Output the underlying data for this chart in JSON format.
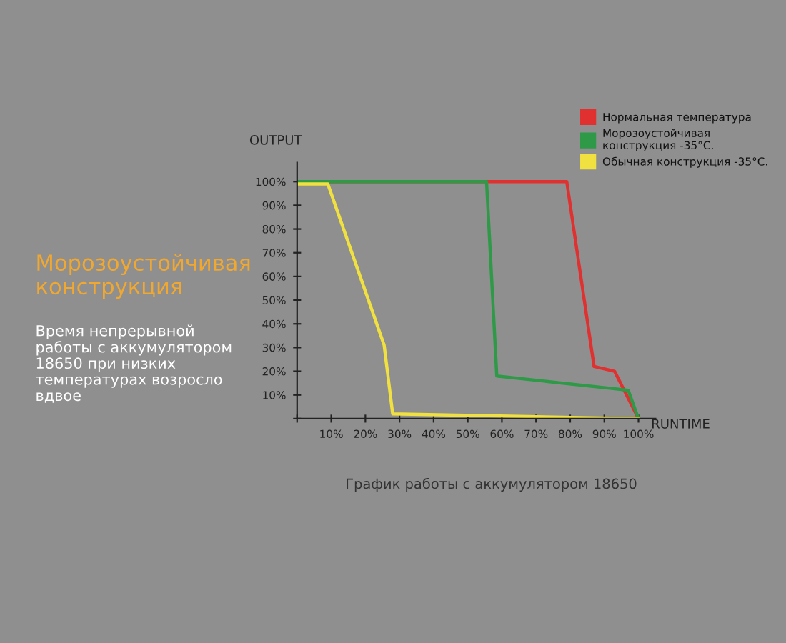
{
  "chart_data": {
    "type": "line",
    "title": "Морозоустойчивая\nконструкция",
    "subtitle": "Время непрерывной\nработы с аккумулятором\n18650 при низких\nтемпературах возросло\nвдвое",
    "xlabel": "RUNTIME",
    "ylabel": "OUTPUT",
    "annotations": [
      "График работы с аккумулятором 18650"
    ],
    "series": [
      {
        "name": "Нормальная температура",
        "color": "#e03030",
        "x": [
          0,
          79,
          87,
          93,
          100
        ],
        "values": [
          100,
          100,
          22,
          20,
          0
        ]
      },
      {
        "name": "Морозоустойчивая\nконструкция -35°C.",
        "color": "#2e9a48",
        "x": [
          0,
          55.5,
          58.5,
          97,
          100
        ],
        "values": [
          100,
          100,
          18,
          12,
          0
        ]
      },
      {
        "name": "Обычная конструкция -35°C.",
        "color": "#f0e040",
        "x": [
          0,
          9,
          25.5,
          28,
          100
        ],
        "values": [
          99,
          99,
          31,
          2,
          0
        ]
      }
    ],
    "xlim": [
      0,
      105
    ],
    "ylim": [
      0,
      108
    ],
    "xticks": [
      {
        "value": 0,
        "label": null
      },
      {
        "value": 10,
        "label": "10%"
      },
      {
        "value": 20,
        "label": "20%"
      },
      {
        "value": 30,
        "label": "30%"
      },
      {
        "value": 40,
        "label": "40%"
      },
      {
        "value": 50,
        "label": "50%"
      },
      {
        "value": 60,
        "label": "60%"
      },
      {
        "value": 70,
        "label": "70%"
      },
      {
        "value": 80,
        "label": "80%"
      },
      {
        "value": 90,
        "label": "90%"
      },
      {
        "value": 100,
        "label": "100%"
      }
    ],
    "yticks": [
      {
        "value": 0,
        "label": null
      },
      {
        "value": 10,
        "label": "10%"
      },
      {
        "value": 20,
        "label": "20%"
      },
      {
        "value": 30,
        "label": "30%"
      },
      {
        "value": 40,
        "label": "40%"
      },
      {
        "value": 50,
        "label": "50%"
      },
      {
        "value": 60,
        "label": "60%"
      },
      {
        "value": 70,
        "label": "70%"
      },
      {
        "value": 80,
        "label": "80%"
      },
      {
        "value": 90,
        "label": "90%"
      },
      {
        "value": 100,
        "label": "100%"
      }
    ],
    "grid": false,
    "legend": "top right",
    "marker": "none",
    "line_style": "solid"
  }
}
